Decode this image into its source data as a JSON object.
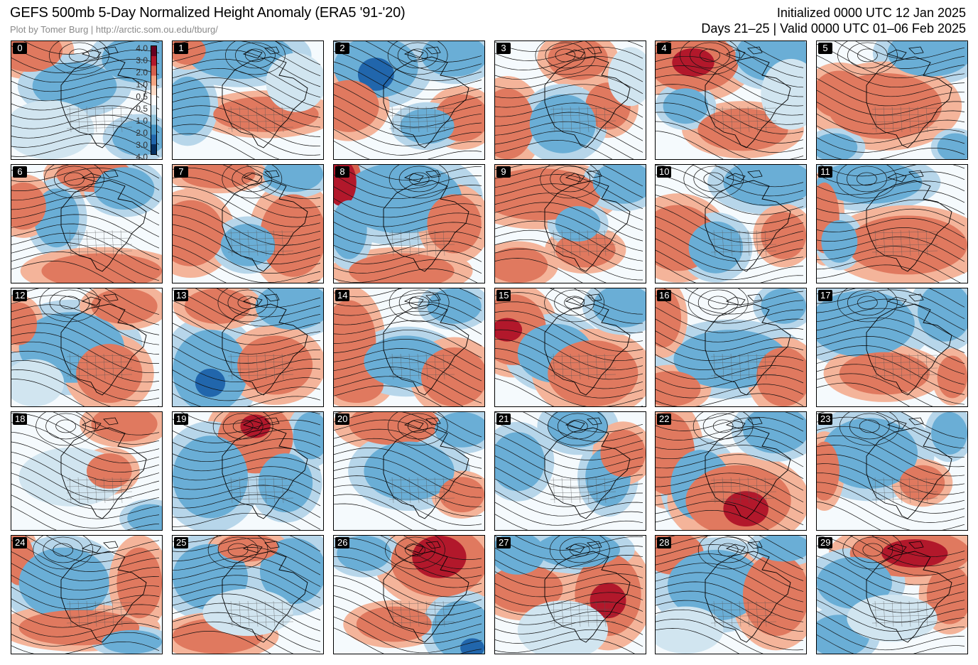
{
  "header": {
    "title": "GEFS 500mb 5-Day Normalized Height Anomaly (ERA5 '91-'20)",
    "credit": "Plot by Tomer Burg | http://arctic.som.ou.edu/tburg/",
    "initialized": "Initialized 0000 UTC 12 Jan 2025",
    "valid": "Days 21–25 | Valid 0000 UTC 01–06 Feb 2025"
  },
  "colorbar": {
    "ticks": [
      "4.0",
      "3.0",
      "2.0",
      "1.0",
      "0.5",
      "0.5",
      "1.0",
      "2.0",
      "3.0",
      "4.0"
    ],
    "colors": [
      "#67001f",
      "#b2182b",
      "#d6604d",
      "#f4a582",
      "#fddbc7",
      "#ffffff",
      "#d1e5f0",
      "#92c5de",
      "#4393c3",
      "#2166ac",
      "#053061"
    ]
  },
  "panels": [
    {
      "label": "0",
      "blobs": [
        [
          "r",
          0.12,
          0.08,
          0.22,
          0.18
        ],
        [
          "b",
          0.42,
          0.38,
          0.28,
          0.2
        ],
        [
          "b",
          0.85,
          0.15,
          0.25,
          0.2
        ],
        [
          "b",
          0.85,
          0.82,
          0.18,
          0.15
        ],
        [
          "lb",
          0.25,
          0.75,
          0.3,
          0.25
        ]
      ]
    },
    {
      "label": "1",
      "blobs": [
        [
          "b",
          0.45,
          0.12,
          0.35,
          0.2
        ],
        [
          "r",
          0.62,
          0.62,
          0.35,
          0.15
        ],
        [
          "b",
          0.1,
          0.55,
          0.15,
          0.25
        ],
        [
          "lb",
          0.82,
          0.35,
          0.2,
          0.25
        ],
        [
          "r",
          0.1,
          0.08,
          0.12,
          0.12
        ]
      ]
    },
    {
      "label": "2",
      "blobs": [
        [
          "b",
          0.28,
          0.22,
          0.28,
          0.26
        ],
        [
          "db",
          0.28,
          0.28,
          0.12,
          0.14
        ],
        [
          "r",
          0.1,
          0.55,
          0.2,
          0.22
        ],
        [
          "r",
          0.85,
          0.65,
          0.18,
          0.2
        ],
        [
          "b",
          0.62,
          0.72,
          0.18,
          0.15
        ],
        [
          "b",
          0.8,
          0.12,
          0.22,
          0.18
        ]
      ]
    },
    {
      "label": "3",
      "blobs": [
        [
          "r",
          0.55,
          0.15,
          0.2,
          0.18
        ],
        [
          "r",
          0.75,
          0.55,
          0.15,
          0.2
        ],
        [
          "r",
          0.08,
          0.7,
          0.18,
          0.3
        ],
        [
          "b",
          0.45,
          0.7,
          0.22,
          0.25
        ],
        [
          "lb",
          0.9,
          0.3,
          0.15,
          0.25
        ]
      ]
    },
    {
      "label": "4",
      "blobs": [
        [
          "r",
          0.25,
          0.18,
          0.3,
          0.25
        ],
        [
          "dr",
          0.25,
          0.18,
          0.14,
          0.12
        ],
        [
          "b",
          0.78,
          0.12,
          0.25,
          0.22
        ],
        [
          "r",
          0.58,
          0.75,
          0.3,
          0.18
        ],
        [
          "b",
          0.2,
          0.55,
          0.15,
          0.15
        ],
        [
          "lb",
          0.9,
          0.45,
          0.2,
          0.3
        ]
      ]
    },
    {
      "label": "5",
      "blobs": [
        [
          "b",
          0.75,
          0.1,
          0.28,
          0.2
        ],
        [
          "r",
          0.45,
          0.55,
          0.38,
          0.28
        ],
        [
          "r",
          0.15,
          0.45,
          0.18,
          0.2
        ],
        [
          "b",
          0.12,
          0.9,
          0.15,
          0.12
        ],
        [
          "b",
          0.92,
          0.9,
          0.12,
          0.12
        ]
      ]
    },
    {
      "label": "6",
      "blobs": [
        [
          "r",
          0.55,
          0.08,
          0.25,
          0.15
        ],
        [
          "b",
          0.3,
          0.45,
          0.15,
          0.25
        ],
        [
          "b",
          0.75,
          0.2,
          0.2,
          0.18
        ],
        [
          "r",
          0.6,
          0.9,
          0.4,
          0.15
        ],
        [
          "r",
          0.08,
          0.35,
          0.15,
          0.2
        ]
      ]
    },
    {
      "label": "7",
      "blobs": [
        [
          "r",
          0.12,
          0.58,
          0.22,
          0.28
        ],
        [
          "r",
          0.8,
          0.6,
          0.22,
          0.35
        ],
        [
          "b",
          0.8,
          0.08,
          0.2,
          0.15
        ],
        [
          "b",
          0.5,
          0.68,
          0.18,
          0.18
        ],
        [
          "r",
          0.3,
          0.08,
          0.25,
          0.12
        ]
      ]
    },
    {
      "label": "8",
      "blobs": [
        [
          "b",
          0.45,
          0.28,
          0.4,
          0.3
        ],
        [
          "dr",
          0.05,
          0.15,
          0.1,
          0.2
        ],
        [
          "r",
          0.45,
          0.9,
          0.35,
          0.15
        ],
        [
          "r",
          0.8,
          0.5,
          0.18,
          0.25
        ],
        [
          "b",
          0.1,
          0.55,
          0.12,
          0.25
        ]
      ]
    },
    {
      "label": "9",
      "blobs": [
        [
          "r",
          0.3,
          0.25,
          0.4,
          0.22
        ],
        [
          "b",
          0.85,
          0.15,
          0.2,
          0.18
        ],
        [
          "r",
          0.15,
          0.85,
          0.2,
          0.15
        ],
        [
          "r",
          0.6,
          0.72,
          0.2,
          0.15
        ],
        [
          "b",
          0.55,
          0.5,
          0.15,
          0.15
        ]
      ]
    },
    {
      "label": "10",
      "blobs": [
        [
          "r",
          0.15,
          0.62,
          0.25,
          0.28
        ],
        [
          "b",
          0.75,
          0.15,
          0.3,
          0.2
        ],
        [
          "b",
          0.4,
          0.7,
          0.18,
          0.22
        ],
        [
          "r",
          0.85,
          0.6,
          0.15,
          0.2
        ]
      ]
    },
    {
      "label": "11",
      "blobs": [
        [
          "b",
          0.35,
          0.15,
          0.35,
          0.18
        ],
        [
          "r",
          0.6,
          0.68,
          0.4,
          0.25
        ],
        [
          "r",
          0.05,
          0.45,
          0.1,
          0.3
        ],
        [
          "b",
          0.15,
          0.65,
          0.12,
          0.18
        ]
      ]
    },
    {
      "label": "12",
      "blobs": [
        [
          "b",
          0.4,
          0.5,
          0.35,
          0.3
        ],
        [
          "r",
          0.65,
          0.72,
          0.22,
          0.25
        ],
        [
          "r",
          0.75,
          0.15,
          0.22,
          0.15
        ],
        [
          "r",
          0.05,
          0.3,
          0.12,
          0.18
        ],
        [
          "lb",
          0.15,
          0.8,
          0.2,
          0.2
        ]
      ]
    },
    {
      "label": "13",
      "blobs": [
        [
          "b",
          0.25,
          0.7,
          0.25,
          0.35
        ],
        [
          "db",
          0.25,
          0.8,
          0.1,
          0.12
        ],
        [
          "b",
          0.8,
          0.15,
          0.25,
          0.2
        ],
        [
          "r",
          0.68,
          0.65,
          0.25,
          0.25
        ],
        [
          "r",
          0.3,
          0.15,
          0.22,
          0.15
        ]
      ]
    },
    {
      "label": "14",
      "blobs": [
        [
          "r",
          0.1,
          0.45,
          0.18,
          0.35
        ],
        [
          "r",
          0.15,
          0.82,
          0.18,
          0.15
        ],
        [
          "b",
          0.48,
          0.62,
          0.28,
          0.22
        ],
        [
          "r",
          0.8,
          0.75,
          0.22,
          0.25
        ],
        [
          "b",
          0.8,
          0.15,
          0.18,
          0.15
        ]
      ]
    },
    {
      "label": "15",
      "blobs": [
        [
          "r",
          0.12,
          0.35,
          0.22,
          0.3
        ],
        [
          "dr",
          0.08,
          0.35,
          0.1,
          0.1
        ],
        [
          "b",
          0.4,
          0.55,
          0.25,
          0.25
        ],
        [
          "r",
          0.65,
          0.72,
          0.3,
          0.28
        ],
        [
          "b",
          0.85,
          0.15,
          0.2,
          0.18
        ]
      ]
    },
    {
      "label": "16",
      "blobs": [
        [
          "b",
          0.5,
          0.6,
          0.38,
          0.25
        ],
        [
          "r",
          0.05,
          0.25,
          0.12,
          0.25
        ],
        [
          "r",
          0.1,
          0.85,
          0.2,
          0.15
        ],
        [
          "r",
          0.85,
          0.75,
          0.18,
          0.25
        ],
        [
          "b",
          0.85,
          0.15,
          0.15,
          0.15
        ]
      ]
    },
    {
      "label": "17",
      "blobs": [
        [
          "b",
          0.3,
          0.3,
          0.35,
          0.28
        ],
        [
          "b",
          0.85,
          0.2,
          0.18,
          0.25
        ],
        [
          "r",
          0.45,
          0.72,
          0.3,
          0.18
        ],
        [
          "r",
          0.9,
          0.75,
          0.1,
          0.18
        ]
      ]
    },
    {
      "label": "18",
      "blobs": [
        [
          "r",
          0.75,
          0.1,
          0.22,
          0.15
        ],
        [
          "lb",
          0.4,
          0.55,
          0.35,
          0.25
        ],
        [
          "b",
          0.92,
          0.9,
          0.15,
          0.12
        ],
        [
          "r",
          0.65,
          0.5,
          0.15,
          0.15
        ]
      ]
    },
    {
      "label": "19",
      "blobs": [
        [
          "r",
          0.55,
          0.22,
          0.25,
          0.3
        ],
        [
          "dr",
          0.55,
          0.12,
          0.1,
          0.1
        ],
        [
          "b",
          0.25,
          0.55,
          0.25,
          0.35
        ],
        [
          "b",
          0.75,
          0.6,
          0.18,
          0.25
        ],
        [
          "b",
          0.92,
          0.2,
          0.12,
          0.2
        ]
      ]
    },
    {
      "label": "20",
      "blobs": [
        [
          "r",
          0.4,
          0.1,
          0.3,
          0.18
        ],
        [
          "b",
          0.5,
          0.5,
          0.3,
          0.25
        ],
        [
          "b",
          0.85,
          0.15,
          0.18,
          0.15
        ],
        [
          "r",
          0.85,
          0.7,
          0.15,
          0.15
        ]
      ]
    },
    {
      "label": "21",
      "blobs": [
        [
          "b",
          0.55,
          0.12,
          0.2,
          0.18
        ],
        [
          "b",
          0.15,
          0.42,
          0.18,
          0.25
        ],
        [
          "b",
          0.75,
          0.55,
          0.15,
          0.25
        ],
        [
          "r",
          0.85,
          0.35,
          0.15,
          0.2
        ]
      ]
    },
    {
      "label": "22",
      "blobs": [
        [
          "r",
          0.08,
          0.35,
          0.18,
          0.35
        ],
        [
          "b",
          0.3,
          0.62,
          0.2,
          0.3
        ],
        [
          "r",
          0.55,
          0.75,
          0.35,
          0.3
        ],
        [
          "dr",
          0.6,
          0.82,
          0.15,
          0.15
        ],
        [
          "b",
          0.8,
          0.15,
          0.22,
          0.2
        ]
      ]
    },
    {
      "label": "23",
      "blobs": [
        [
          "b",
          0.35,
          0.35,
          0.32,
          0.3
        ],
        [
          "b",
          0.88,
          0.18,
          0.12,
          0.18
        ],
        [
          "r",
          0.05,
          0.5,
          0.1,
          0.25
        ],
        [
          "r",
          0.7,
          0.6,
          0.15,
          0.15
        ]
      ]
    },
    {
      "label": "24",
      "blobs": [
        [
          "r",
          0.05,
          0.2,
          0.1,
          0.22
        ],
        [
          "b",
          0.35,
          0.4,
          0.3,
          0.3
        ],
        [
          "r",
          0.85,
          0.4,
          0.15,
          0.3
        ],
        [
          "r",
          0.45,
          0.78,
          0.4,
          0.15
        ],
        [
          "b",
          0.8,
          0.9,
          0.2,
          0.1
        ]
      ]
    },
    {
      "label": "25",
      "blobs": [
        [
          "b",
          0.25,
          0.35,
          0.25,
          0.28
        ],
        [
          "b",
          0.8,
          0.3,
          0.22,
          0.28
        ],
        [
          "r",
          0.5,
          0.1,
          0.2,
          0.12
        ],
        [
          "r",
          0.3,
          0.85,
          0.3,
          0.15
        ],
        [
          "lb",
          0.5,
          0.65,
          0.3,
          0.2
        ]
      ]
    },
    {
      "label": "26",
      "blobs": [
        [
          "r",
          0.7,
          0.22,
          0.32,
          0.3
        ],
        [
          "dr",
          0.7,
          0.18,
          0.18,
          0.18
        ],
        [
          "b",
          0.2,
          0.15,
          0.18,
          0.15
        ],
        [
          "r",
          0.4,
          0.75,
          0.25,
          0.15
        ],
        [
          "b",
          0.85,
          0.8,
          0.2,
          0.25
        ],
        [
          "db",
          0.92,
          0.95,
          0.08,
          0.08
        ]
      ]
    },
    {
      "label": "27",
      "blobs": [
        [
          "r",
          0.2,
          0.45,
          0.25,
          0.2
        ],
        [
          "r",
          0.75,
          0.5,
          0.22,
          0.35
        ],
        [
          "dr",
          0.75,
          0.55,
          0.12,
          0.15
        ],
        [
          "b",
          0.55,
          0.12,
          0.28,
          0.15
        ],
        [
          "b",
          0.15,
          0.15,
          0.18,
          0.18
        ],
        [
          "lb",
          0.45,
          0.8,
          0.3,
          0.25
        ]
      ]
    },
    {
      "label": "28",
      "blobs": [
        [
          "r",
          0.12,
          0.15,
          0.2,
          0.18
        ],
        [
          "b",
          0.4,
          0.42,
          0.32,
          0.3
        ],
        [
          "r",
          0.8,
          0.5,
          0.22,
          0.35
        ],
        [
          "b",
          0.85,
          0.1,
          0.18,
          0.12
        ],
        [
          "lb",
          0.2,
          0.8,
          0.25,
          0.2
        ]
      ]
    },
    {
      "label": "29",
      "blobs": [
        [
          "r",
          0.62,
          0.15,
          0.4,
          0.2
        ],
        [
          "dr",
          0.65,
          0.15,
          0.22,
          0.12
        ],
        [
          "b",
          0.25,
          0.4,
          0.25,
          0.22
        ],
        [
          "b",
          0.15,
          0.85,
          0.2,
          0.18
        ],
        [
          "r",
          0.88,
          0.5,
          0.15,
          0.25
        ],
        [
          "lb",
          0.5,
          0.7,
          0.3,
          0.2
        ]
      ]
    }
  ]
}
